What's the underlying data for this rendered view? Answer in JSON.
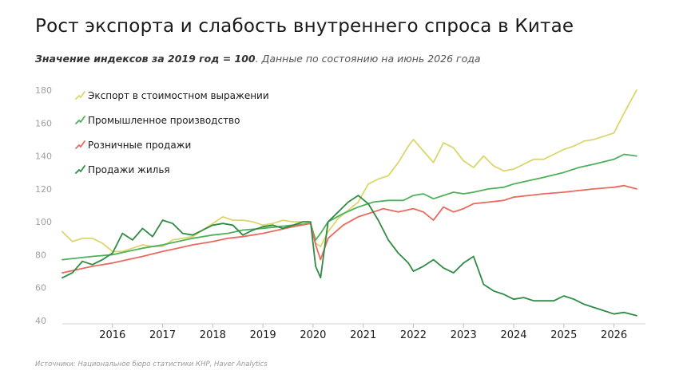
{
  "header": {
    "title": "Рост экспорта и слабость внутреннего спроса в Китае",
    "subtitle_bold": "Значение индексов за 2019 год = 100",
    "subtitle_rest": ". Данные по состоянию на июнь 2026 года"
  },
  "footer": {
    "source": "Источники: Национальное бюро статистики КНР, Haver Analytics"
  },
  "chart_data": {
    "type": "line",
    "title": "Рост экспорта и слабость внутреннего спроса в Китае",
    "xlabel": "",
    "ylabel": "",
    "ylim": [
      40,
      180
    ],
    "xlim": [
      2015.0,
      2026.5
    ],
    "y_ticks": [
      40,
      60,
      80,
      100,
      120,
      140,
      160,
      180
    ],
    "x_ticks": [
      {
        "label": "2016",
        "x": 2016.0
      },
      {
        "label": "2017",
        "x": 2017.0
      },
      {
        "label": "2018",
        "x": 2018.0
      },
      {
        "label": "2019",
        "x": 2019.0
      },
      {
        "label": "2020",
        "x": 2020.0
      },
      {
        "label": "2021",
        "x": 2021.0
      },
      {
        "label": "2022",
        "x": 2022.0
      },
      {
        "label": "2023",
        "x": 2023.0
      },
      {
        "label": "2024",
        "x": 2024.0
      },
      {
        "label": "2025",
        "x": 2025.0
      },
      {
        "label": "2026",
        "x": 2026.0
      }
    ],
    "grid": false,
    "legend_position": "top-left",
    "series": [
      {
        "name": "Экспорт в стоимостном выражении",
        "color": "#dcd66a",
        "x": [
          2015.0,
          2015.2,
          2015.4,
          2015.6,
          2015.8,
          2016.0,
          2016.2,
          2016.4,
          2016.6,
          2016.8,
          2017.0,
          2017.2,
          2017.4,
          2017.6,
          2017.8,
          2018.0,
          2018.2,
          2018.4,
          2018.6,
          2018.8,
          2019.0,
          2019.2,
          2019.4,
          2019.6,
          2019.8,
          2019.95,
          2020.05,
          2020.15,
          2020.3,
          2020.5,
          2020.7,
          2020.9,
          2021.1,
          2021.3,
          2021.5,
          2021.7,
          2021.9,
          2022.0,
          2022.2,
          2022.4,
          2022.6,
          2022.8,
          2023.0,
          2023.2,
          2023.4,
          2023.6,
          2023.8,
          2024.0,
          2024.2,
          2024.4,
          2024.6,
          2024.8,
          2025.0,
          2025.2,
          2025.4,
          2025.6,
          2025.8,
          2026.0,
          2026.2,
          2026.45
        ],
        "y": [
          94,
          88,
          90,
          90,
          87,
          82,
          82,
          84,
          86,
          85,
          85,
          89,
          90,
          91,
          95,
          99,
          103,
          101,
          101,
          100,
          98,
          99,
          101,
          100,
          100,
          99,
          87,
          85,
          94,
          102,
          107,
          112,
          123,
          126,
          128,
          136,
          146,
          150,
          143,
          136,
          148,
          145,
          137,
          133,
          140,
          134,
          131,
          132,
          135,
          138,
          138,
          141,
          144,
          146,
          149,
          150,
          152,
          154,
          166,
          180
        ]
      },
      {
        "name": "Промышленное производство",
        "color": "#4db15b",
        "x": [
          2015.0,
          2015.3,
          2015.6,
          2016.0,
          2016.3,
          2016.6,
          2017.0,
          2017.3,
          2017.6,
          2018.0,
          2018.3,
          2018.6,
          2019.0,
          2019.3,
          2019.6,
          2019.95,
          2020.05,
          2020.15,
          2020.3,
          2020.6,
          2020.9,
          2021.2,
          2021.5,
          2021.8,
          2022.0,
          2022.2,
          2022.4,
          2022.6,
          2022.8,
          2023.0,
          2023.2,
          2023.5,
          2023.8,
          2024.0,
          2024.3,
          2024.6,
          2025.0,
          2025.3,
          2025.6,
          2026.0,
          2026.2,
          2026.45
        ],
        "y": [
          77,
          78,
          79,
          80,
          82,
          84,
          86,
          88,
          90,
          92,
          93,
          95,
          96,
          97,
          98,
          99,
          89,
          93,
          100,
          105,
          109,
          112,
          113,
          113,
          116,
          117,
          114,
          116,
          118,
          117,
          118,
          120,
          121,
          123,
          125,
          127,
          130,
          133,
          135,
          138,
          141,
          140
        ]
      },
      {
        "name": "Розничные продажи",
        "color": "#e96a5e",
        "x": [
          2015.0,
          2015.3,
          2015.6,
          2016.0,
          2016.3,
          2016.6,
          2017.0,
          2017.3,
          2017.6,
          2018.0,
          2018.3,
          2018.6,
          2019.0,
          2019.3,
          2019.6,
          2019.95,
          2020.05,
          2020.15,
          2020.3,
          2020.6,
          2020.9,
          2021.2,
          2021.4,
          2021.7,
          2022.0,
          2022.2,
          2022.4,
          2022.6,
          2022.8,
          2023.0,
          2023.2,
          2023.5,
          2023.8,
          2024.0,
          2024.3,
          2024.6,
          2025.0,
          2025.3,
          2025.6,
          2026.0,
          2026.2,
          2026.45
        ],
        "y": [
          69,
          71,
          73,
          75,
          77,
          79,
          82,
          84,
          86,
          88,
          90,
          91,
          93,
          95,
          97,
          99,
          86,
          77,
          90,
          98,
          103,
          106,
          108,
          106,
          108,
          106,
          101,
          109,
          106,
          108,
          111,
          112,
          113,
          115,
          116,
          117,
          118,
          119,
          120,
          121,
          122,
          120
        ]
      },
      {
        "name": "Продажи жилья",
        "color": "#2f8b43",
        "x": [
          2015.0,
          2015.2,
          2015.4,
          2015.6,
          2015.8,
          2016.0,
          2016.2,
          2016.4,
          2016.6,
          2016.8,
          2017.0,
          2017.2,
          2017.4,
          2017.6,
          2017.8,
          2018.0,
          2018.2,
          2018.4,
          2018.6,
          2018.8,
          2019.0,
          2019.2,
          2019.4,
          2019.6,
          2019.8,
          2019.95,
          2020.05,
          2020.15,
          2020.3,
          2020.5,
          2020.7,
          2020.9,
          2021.1,
          2021.3,
          2021.5,
          2021.7,
          2021.9,
          2022.0,
          2022.2,
          2022.4,
          2022.6,
          2022.8,
          2023.0,
          2023.2,
          2023.4,
          2023.6,
          2023.8,
          2024.0,
          2024.2,
          2024.4,
          2024.6,
          2024.8,
          2025.0,
          2025.2,
          2025.4,
          2025.6,
          2025.8,
          2026.0,
          2026.2,
          2026.45
        ],
        "y": [
          66,
          69,
          76,
          74,
          77,
          81,
          93,
          89,
          96,
          91,
          101,
          99,
          93,
          92,
          95,
          98,
          99,
          98,
          92,
          95,
          97,
          98,
          96,
          98,
          100,
          100,
          73,
          66,
          100,
          106,
          112,
          116,
          111,
          101,
          89,
          81,
          75,
          70,
          73,
          77,
          72,
          69,
          75,
          79,
          62,
          58,
          56,
          53,
          54,
          52,
          52,
          52,
          55,
          53,
          50,
          48,
          46,
          44,
          45,
          43
        ]
      }
    ]
  }
}
